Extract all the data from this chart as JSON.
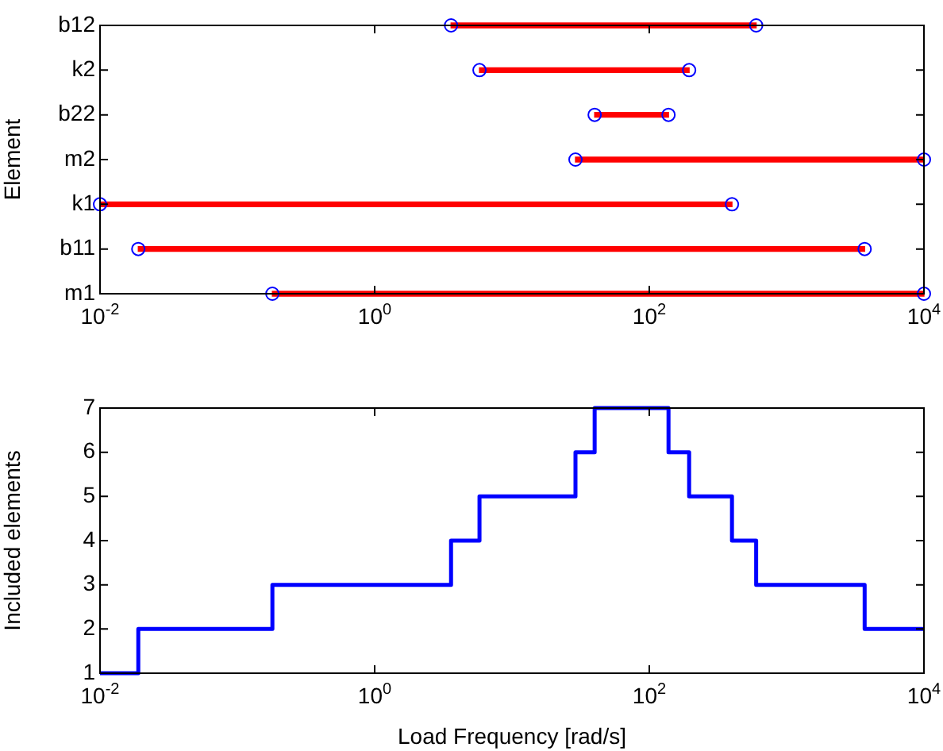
{
  "chart_data": [
    {
      "type": "bar",
      "orientation": "horizontal",
      "ylabel": "Element",
      "categories": [
        "b12",
        "k2",
        "b22",
        "m2",
        "k1",
        "b11",
        "m1"
      ],
      "series": [
        {
          "type": "bar",
          "color": "#ff0000",
          "base": [
            3.6,
            5.8,
            40,
            29,
            0.01,
            0.019,
            0.18
          ],
          "values": [
            596.4,
            189.2,
            98,
            9971,
            399.99,
            3699.981,
            9999.82
          ]
        },
        {
          "type": "scatter",
          "color": "#0000ff",
          "values": [
            3.6,
            5.8,
            40,
            29,
            0.01,
            0.019,
            0.18
          ]
        },
        {
          "type": "scatter",
          "color": "#0000ff",
          "values": [
            600,
            195,
            138,
            10000,
            400,
            3700,
            10000
          ]
        }
      ],
      "marker": "circle",
      "xlim": [
        0.01,
        10000
      ],
      "xticks": [
        {
          "value": 0.01,
          "label": "10$^{-2}$"
        },
        {
          "value": 1,
          "label": "10$^{0}$"
        },
        {
          "value": 100,
          "label": "10$^{2}$"
        },
        {
          "value": 10000,
          "label": "10$^{4}$"
        }
      ],
      "log": "x",
      "grid": false,
      "legend": false
    },
    {
      "type": "step",
      "x": [
        0.01,
        0.019,
        0.18,
        3.6,
        5.8,
        29,
        40,
        138,
        195,
        400,
        600,
        3700,
        10000
      ],
      "values": [
        1,
        2,
        3,
        4,
        5,
        6,
        7,
        6,
        5,
        4,
        3,
        2,
        2
      ],
      "color": "#0000ff",
      "xlabel": "Load Frequency [rad/s]",
      "ylabel": "Included elements",
      "xlim": [
        0.01,
        10000
      ],
      "xticks": [
        {
          "value": 0.01,
          "label": "10$^{-2}$"
        },
        {
          "value": 1,
          "label": "10$^{0}$"
        },
        {
          "value": 100,
          "label": "10$^{2}$"
        },
        {
          "value": 10000,
          "label": "10$^{4}$"
        }
      ],
      "ylim": [
        1,
        7
      ],
      "yticks": [
        1,
        2,
        3,
        4,
        5,
        6,
        7
      ],
      "log": "x",
      "grid": false,
      "legend": false
    }
  ]
}
